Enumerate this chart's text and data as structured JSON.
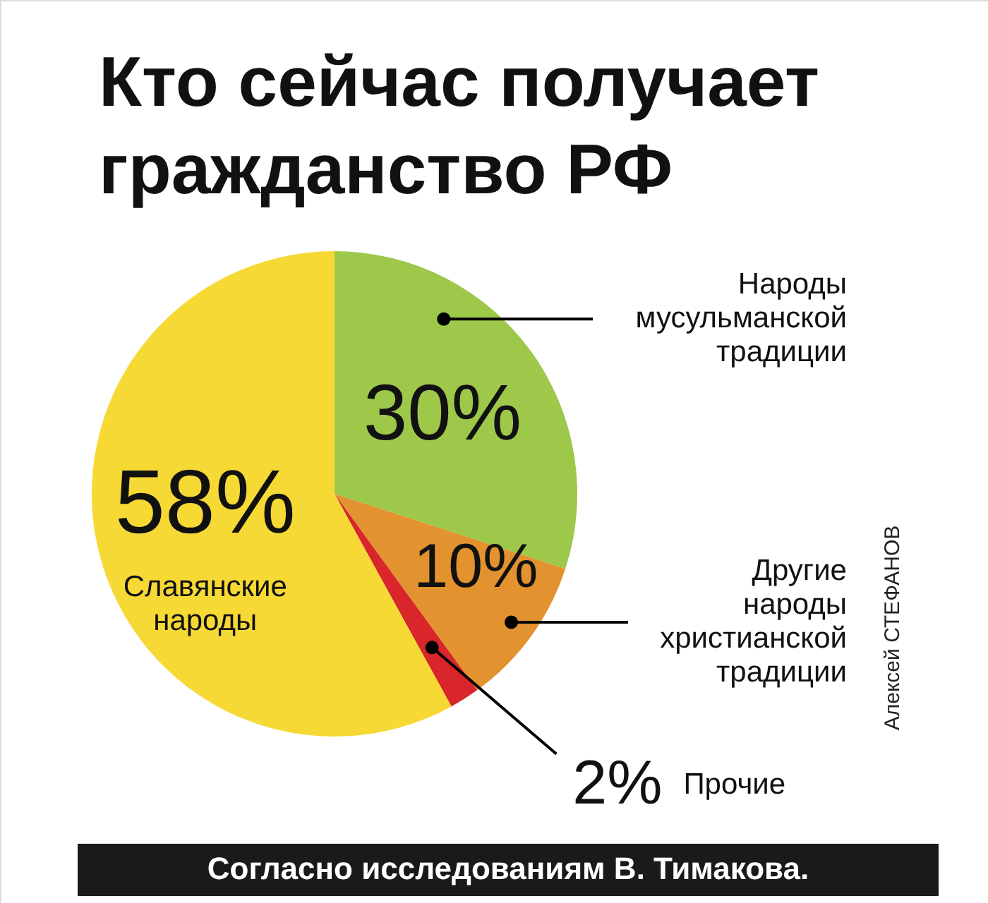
{
  "chart_data": {
    "type": "pie",
    "title": "Кто сейчас получает гражданство РФ",
    "categories": [
      "Народы мусульманской традиции",
      "Другие народы христианской традиции",
      "Прочие",
      "Славянские народы"
    ],
    "values": [
      30,
      10,
      2,
      58
    ],
    "colors": [
      "#9dc84a",
      "#e2922e",
      "#d8262a",
      "#f6d935"
    ],
    "value_labels": [
      "30%",
      "10%",
      "2%",
      "58%"
    ],
    "annotations": [
      "Согласно исследованиям В. Тимакова.",
      "Алексей СТЕФАНОВ"
    ]
  }
}
